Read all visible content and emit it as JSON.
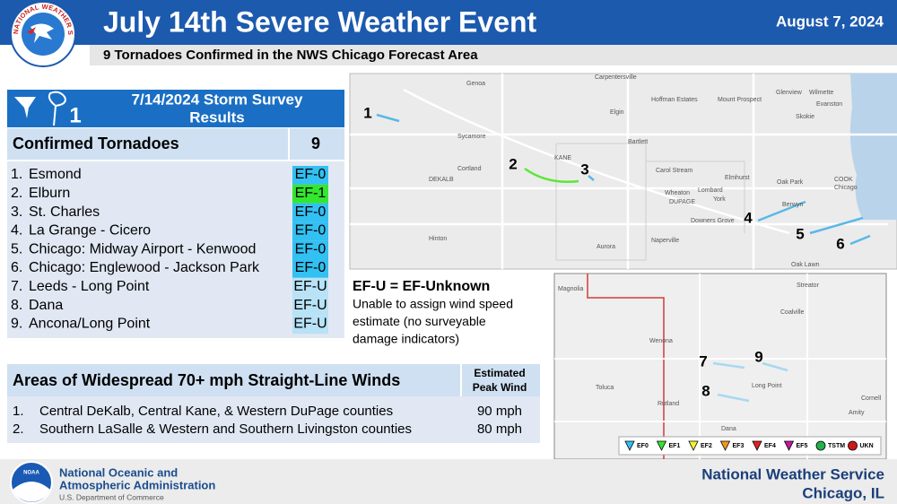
{
  "header": {
    "logo_text": "NATIONAL WEATHER SERVICE",
    "title": "July 14th Severe Weather Event",
    "date": "August 7, 2024",
    "subtitle": "9 Tornadoes Confirmed in the NWS Chicago Forecast Area"
  },
  "survey": {
    "title_lines": [
      "7/14/2024 Storm Survey",
      "Results"
    ],
    "icon_number": "1",
    "confirmed_label": "Confirmed Tornadoes",
    "confirmed_count": 9,
    "tornadoes": [
      {
        "number": "1.",
        "name": "Esmond",
        "rating": "EF-0",
        "rating_color": "#33c0f2"
      },
      {
        "number": "2.",
        "name": "Elburn",
        "rating": "EF-1",
        "rating_color": "#33e62e"
      },
      {
        "number": "3.",
        "name": "St. Charles",
        "rating": "EF-0",
        "rating_color": "#33c0f2"
      },
      {
        "number": "4.",
        "name": "La Grange - Cicero",
        "rating": "EF-0",
        "rating_color": "#33c0f2"
      },
      {
        "number": "5.",
        "name": "Chicago: Midway Airport - Kenwood",
        "rating": "EF-0",
        "rating_color": "#33c0f2"
      },
      {
        "number": "6.",
        "name": "Chicago: Englewood - Jackson Park",
        "rating": "EF-0",
        "rating_color": "#33c0f2"
      },
      {
        "number": "7.",
        "name": "Leeds - Long Point",
        "rating": "EF-U",
        "rating_color": "#b8e2f6"
      },
      {
        "number": "8.",
        "name": "Dana",
        "rating": "EF-U",
        "rating_color": "#b8e2f6"
      },
      {
        "number": "9.",
        "name": "Ancona/Long Point",
        "rating": "EF-U",
        "rating_color": "#b8e2f6"
      }
    ]
  },
  "ef_u": {
    "title": "EF-U = EF-Unknown",
    "lines": [
      "Unable to assign wind speed",
      "estimate (no surveyable",
      "damage indicators)"
    ]
  },
  "winds": {
    "title": "Areas of Widespread 70+ mph Straight-Line Winds",
    "column_lines": [
      "Estimated",
      "Peak Wind"
    ],
    "rows": [
      {
        "number": "1.",
        "area": "Central DeKalb, Central Kane, & Western DuPage counties",
        "wind": "90 mph"
      },
      {
        "number": "2.",
        "area": "Southern LaSalle & Western and Southern Livingston counties",
        "wind": "80 mph"
      }
    ]
  },
  "map1": {
    "places": [
      "Genoa",
      "Carpentersville",
      "Hoffman Estates",
      "Mount Prospect",
      "Glenview",
      "Wilmette",
      "Evanston",
      "Skokie",
      "Elgin",
      "Sycamore",
      "Bartlett",
      "KANE",
      "Cortland",
      "DEKALB",
      "Carol Stream",
      "Elmhurst",
      "Oak Park",
      "COOK",
      "Chicago",
      "Wheaton",
      "Lombard",
      "DUPAGE",
      "York",
      "Berwyn",
      "Downers Grove",
      "Naperville",
      "Hinton",
      "Aurora",
      "Oak Lawn"
    ],
    "labels": [
      "1",
      "2",
      "3",
      "4",
      "5",
      "6"
    ]
  },
  "map2": {
    "places": [
      "Magnolia",
      "Streator",
      "Coalville",
      "Wenona",
      "Toluca",
      "Long Point",
      "Rutland",
      "Cornell",
      "Amity",
      "Dana"
    ],
    "labels": [
      "7",
      "9",
      "8"
    ],
    "legend": [
      {
        "label": "EF0",
        "color": "#33c0f2"
      },
      {
        "label": "EF1",
        "color": "#33e62e"
      },
      {
        "label": "EF2",
        "color": "#f2f233"
      },
      {
        "label": "EF3",
        "color": "#f29a1a"
      },
      {
        "label": "EF4",
        "color": "#e62020"
      },
      {
        "label": "EF5",
        "color": "#c21a9e"
      },
      {
        "label": "TSTM",
        "color": "#22b14c"
      },
      {
        "label": "UKN",
        "color": "#cc1a1a"
      }
    ]
  },
  "footer": {
    "noaa_logo": "NOAA",
    "agency_lines": [
      "National Oceanic and",
      "Atmospheric Administration"
    ],
    "department": "U.S. Department of Commerce",
    "office": "National Weather Service",
    "location": "Chicago, IL"
  }
}
